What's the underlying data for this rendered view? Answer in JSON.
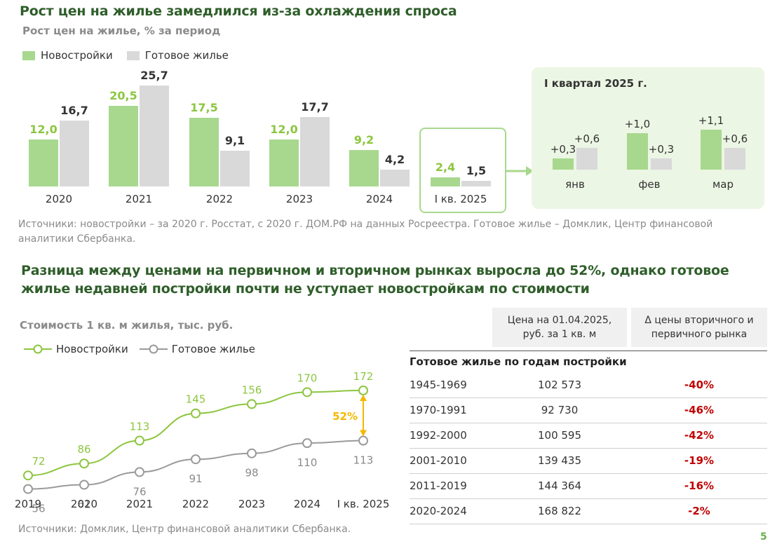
{
  "header": {
    "title1": "Рост цен на жилье замедлился из-за охлаждения спроса",
    "subtitle1": "Рост цен на жилье, % за период",
    "title2_line1": "Разница между ценами на первичном и вторичном рынках выросла до 52%, однако готовое",
    "title2_line2": "жилье недавней постройки почти не уступает новостройкам по стоимости",
    "subtitle2": "Стоимость 1 кв. м жилья, тыс. руб."
  },
  "colors": {
    "green": "#a8d88e",
    "gray": "#d9d9d9",
    "green_text": "#8cc63f",
    "dark_green": "#2f5e2a",
    "red": "#c00000",
    "amber": "#f5b800"
  },
  "legend": {
    "new": "Новостройки",
    "secondary": "Готовое жилье"
  },
  "chart_data": [
    {
      "type": "bar",
      "categories": [
        "2020",
        "2021",
        "2022",
        "2023",
        "2024",
        "I кв. 2025"
      ],
      "series": [
        {
          "name": "Новостройки",
          "values": [
            12.0,
            20.5,
            17.5,
            12.0,
            9.2,
            2.4
          ],
          "labels": [
            "12,0",
            "20,5",
            "17,5",
            "12,0",
            "9,2",
            "2,4"
          ]
        },
        {
          "name": "Готовое жилье",
          "values": [
            16.7,
            25.7,
            9.1,
            17.7,
            4.2,
            1.5
          ],
          "labels": [
            "16,7",
            "25,7",
            "9,1",
            "17,7",
            "4,2",
            "1,5"
          ]
        }
      ],
      "title": "Рост цен на жилье, % за период",
      "ylim": [
        0,
        26
      ]
    },
    {
      "type": "bar",
      "title": "I квартал 2025 г.",
      "categories": [
        "янв",
        "фев",
        "мар"
      ],
      "series": [
        {
          "name": "Новостройки",
          "values": [
            0.3,
            1.0,
            1.1
          ],
          "labels": [
            "+0,3",
            "+1,0",
            "+1,1"
          ]
        },
        {
          "name": "Готовое жилье",
          "values": [
            0.6,
            0.3,
            0.6
          ],
          "labels": [
            "+0,6",
            "+0,3",
            "+0,6"
          ]
        }
      ],
      "ylim": [
        0,
        1.2
      ]
    },
    {
      "type": "line",
      "title": "Стоимость 1 кв. м жилья, тыс. руб.",
      "categories": [
        "2019",
        "2020",
        "2021",
        "2022",
        "2023",
        "2024",
        "I кв. 2025"
      ],
      "series": [
        {
          "name": "Новостройки",
          "values": [
            72,
            86,
            113,
            145,
            156,
            170,
            172
          ]
        },
        {
          "name": "Готовое жилье",
          "values": [
            56,
            61,
            76,
            91,
            98,
            110,
            113
          ]
        }
      ],
      "annotation": "52%",
      "ylim": [
        40,
        180
      ]
    },
    {
      "type": "table",
      "columns": [
        "",
        "Цена на 01.04.2025, руб. за 1 кв. м",
        "Δ цены вторичного и первичного рынка"
      ],
      "column_lines": [
        [
          "Цена на 01.04.2025,",
          "руб. за 1 кв. м"
        ],
        [
          "Δ цены вторичного и",
          "первичного рынка"
        ]
      ],
      "section": "Готовое жилье по годам постройки",
      "rows": [
        {
          "period": "1945-1969",
          "price": "102 573",
          "delta": "-40%"
        },
        {
          "period": "1970-1991",
          "price": "92 730",
          "delta": "-46%"
        },
        {
          "period": "1992-2000",
          "price": "100 595",
          "delta": "-42%"
        },
        {
          "period": "2001-2010",
          "price": "139 435",
          "delta": "-19%"
        },
        {
          "period": "2011-2019",
          "price": "144 364",
          "delta": "-16%"
        },
        {
          "period": "2020-2024",
          "price": "168 822",
          "delta": "-2%"
        }
      ]
    }
  ],
  "sources": {
    "top_line1": "Источники: новостройки – за 2020 г. Росстат, с 2020 г. ДОМ.РФ на данных Росреестра. Готовое жилье – Домклик, Центр финансовой",
    "top_line2": "аналитики Сбербанка.",
    "bottom": "Источники: Домклик, Центр финансовой аналитики Сбербанка."
  },
  "page_number": "5"
}
